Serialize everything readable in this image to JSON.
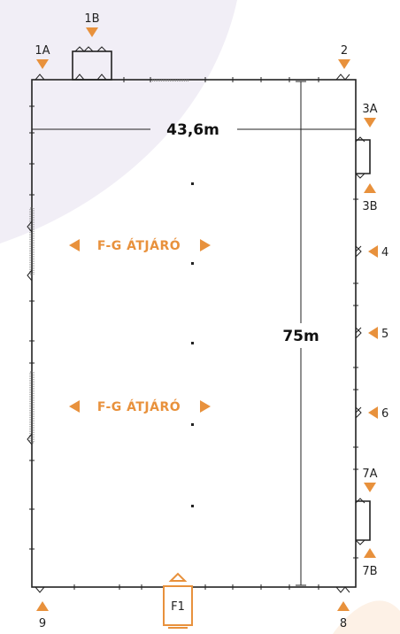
{
  "colors": {
    "accent": "#e8913c",
    "wall": "#222222",
    "blob_left": "#f1eef6",
    "blob_right": "#fdf1e6"
  },
  "dimensions": {
    "width": "43,6m",
    "length": "75m"
  },
  "passage": {
    "label": "F-G ÁTJÁRÓ"
  },
  "gates": {
    "g1A": "1A",
    "g1B": "1B",
    "g2": "2",
    "g3A": "3A",
    "g3B": "3B",
    "g4": "4",
    "g5": "5",
    "g6": "6",
    "g7A": "7A",
    "g7B": "7B",
    "g8": "8",
    "g9": "9",
    "gF1": "F1"
  },
  "icons": {
    "marker": "triangle-marker-icon",
    "arrow_left": "arrow-left-icon",
    "arrow_right": "arrow-right-icon"
  }
}
